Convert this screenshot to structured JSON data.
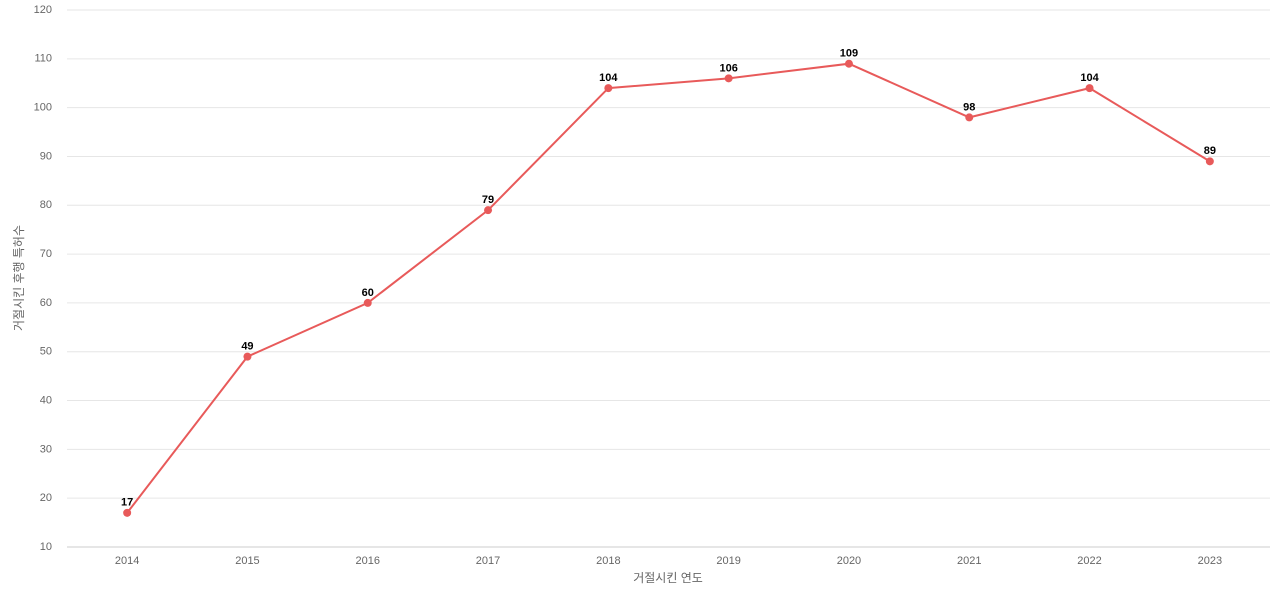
{
  "chart_data": {
    "type": "line",
    "x_label": "거절시킨 연도",
    "y_label": "거절시킨 후행 특허수",
    "categories": [
      "2014",
      "2015",
      "2016",
      "2017",
      "2018",
      "2019",
      "2020",
      "2021",
      "2022",
      "2023"
    ],
    "series": [
      {
        "color": "#e85a5a",
        "values": [
          17,
          49,
          60,
          79,
          104,
          106,
          109,
          98,
          104,
          89
        ]
      }
    ],
    "ylim": [
      10,
      120
    ],
    "yticks": [
      10,
      20,
      30,
      40,
      50,
      60,
      70,
      80,
      90,
      100,
      110,
      120
    ],
    "grid": true
  }
}
